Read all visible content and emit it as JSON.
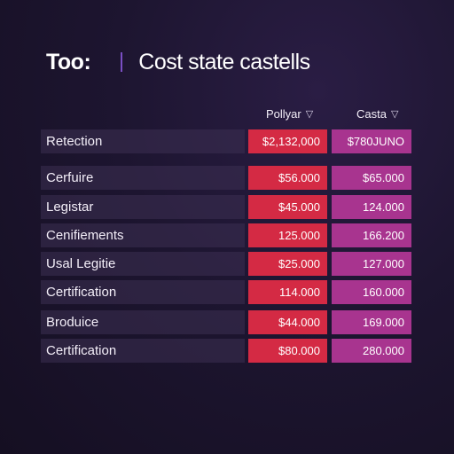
{
  "header": {
    "app_name": "Too:",
    "page_title": "Cost state castells"
  },
  "columns": [
    {
      "label": "Pollyar",
      "icon": "chevron-down-icon"
    },
    {
      "label": "Casta",
      "icon": "chevron-down-icon"
    }
  ],
  "colors": {
    "pollyar": "#d42a44",
    "casta": "#a8348f",
    "background": "#1d1530"
  },
  "rows": [
    {
      "label": "Retection",
      "pollyar": "$2,132,000",
      "casta": "$780JUNO"
    },
    {
      "label": "Cerfuire",
      "pollyar": "$56.000",
      "casta": "$65.000"
    },
    {
      "label": "Legistar",
      "pollyar": "$45.000",
      "casta": "124.000"
    },
    {
      "label": "Cenifiements",
      "pollyar": "125.000",
      "casta": "166.200"
    },
    {
      "label": "Usal Legitie",
      "pollyar": "$25.000",
      "casta": "127.000"
    },
    {
      "label": "Certification",
      "pollyar": "114.000",
      "casta": "160.000"
    },
    {
      "label": "Broduice",
      "pollyar": "$44.000",
      "casta": "169.000"
    },
    {
      "label": "Certification",
      "pollyar": "$80.000",
      "casta": "280.000"
    }
  ]
}
